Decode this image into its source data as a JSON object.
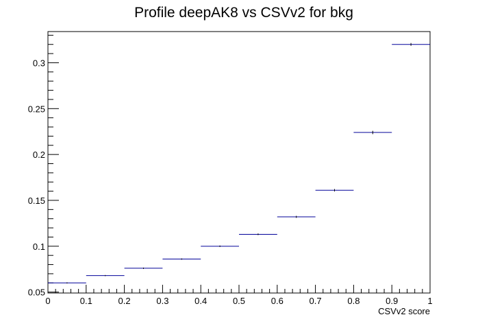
{
  "chart_data": {
    "type": "profile",
    "title": "Profile deepAK8 vs CSVv2 for bkg",
    "xlabel": "CSVv2 score",
    "ylabel": "",
    "xlim": [
      0,
      1
    ],
    "ylim": [
      0.049,
      0.334
    ],
    "x_ticks": [
      0,
      0.1,
      0.2,
      0.3,
      0.4,
      0.5,
      0.6,
      0.7,
      0.8,
      0.9,
      1
    ],
    "x_tick_labels": [
      "0",
      "0.1",
      "0.2",
      "0.3",
      "0.4",
      "0.5",
      "0.6",
      "0.7",
      "0.8",
      "0.9",
      "1"
    ],
    "y_ticks": [
      0.05,
      0.1,
      0.15,
      0.2,
      0.25,
      0.3
    ],
    "y_tick_labels": [
      "0.05",
      "0.1",
      "0.15",
      "0.2",
      "0.25",
      "0.3"
    ],
    "grid": false,
    "legend": "none",
    "colors": {
      "marker": "#000099",
      "axis": "#000000"
    },
    "series": [
      {
        "bin_edges": [
          0,
          0.1,
          0.2,
          0.3,
          0.4,
          0.5,
          0.6,
          0.7,
          0.8,
          0.9,
          1.0
        ],
        "x": [
          0.05,
          0.15,
          0.25,
          0.35,
          0.45,
          0.55,
          0.65,
          0.75,
          0.85,
          0.95
        ],
        "values": [
          0.06,
          0.068,
          0.076,
          0.086,
          0.1,
          0.113,
          0.132,
          0.161,
          0.224,
          0.32
        ],
        "errors": [
          0.0006,
          0.0006,
          0.0007,
          0.0007,
          0.0008,
          0.0009,
          0.0011,
          0.0013,
          0.0018,
          0.0015
        ]
      }
    ]
  }
}
